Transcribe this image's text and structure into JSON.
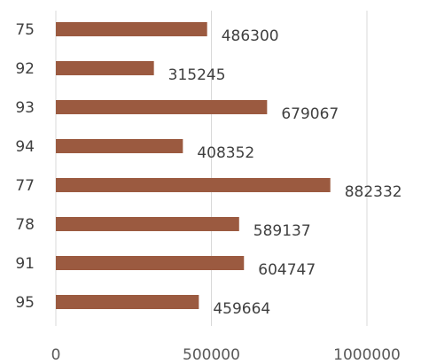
{
  "chart_data": {
    "type": "bar",
    "orientation": "horizontal",
    "categories": [
      "75",
      "92",
      "93",
      "94",
      "77",
      "78",
      "91",
      "95"
    ],
    "values": [
      486300,
      315245,
      679067,
      408352,
      882332,
      589137,
      604747,
      459664
    ],
    "data_labels": [
      "486300",
      "315245",
      "679067",
      "408352",
      "882332",
      "589137",
      "604747",
      "459664"
    ],
    "xlim": [
      0,
      1000000
    ],
    "x_ticks": [
      0,
      500000,
      1000000
    ],
    "x_tick_labels": [
      "0",
      "500000",
      "1000000"
    ],
    "grid": true,
    "bar_color": "#9b5a40",
    "title": "",
    "xlabel": "",
    "ylabel": ""
  }
}
